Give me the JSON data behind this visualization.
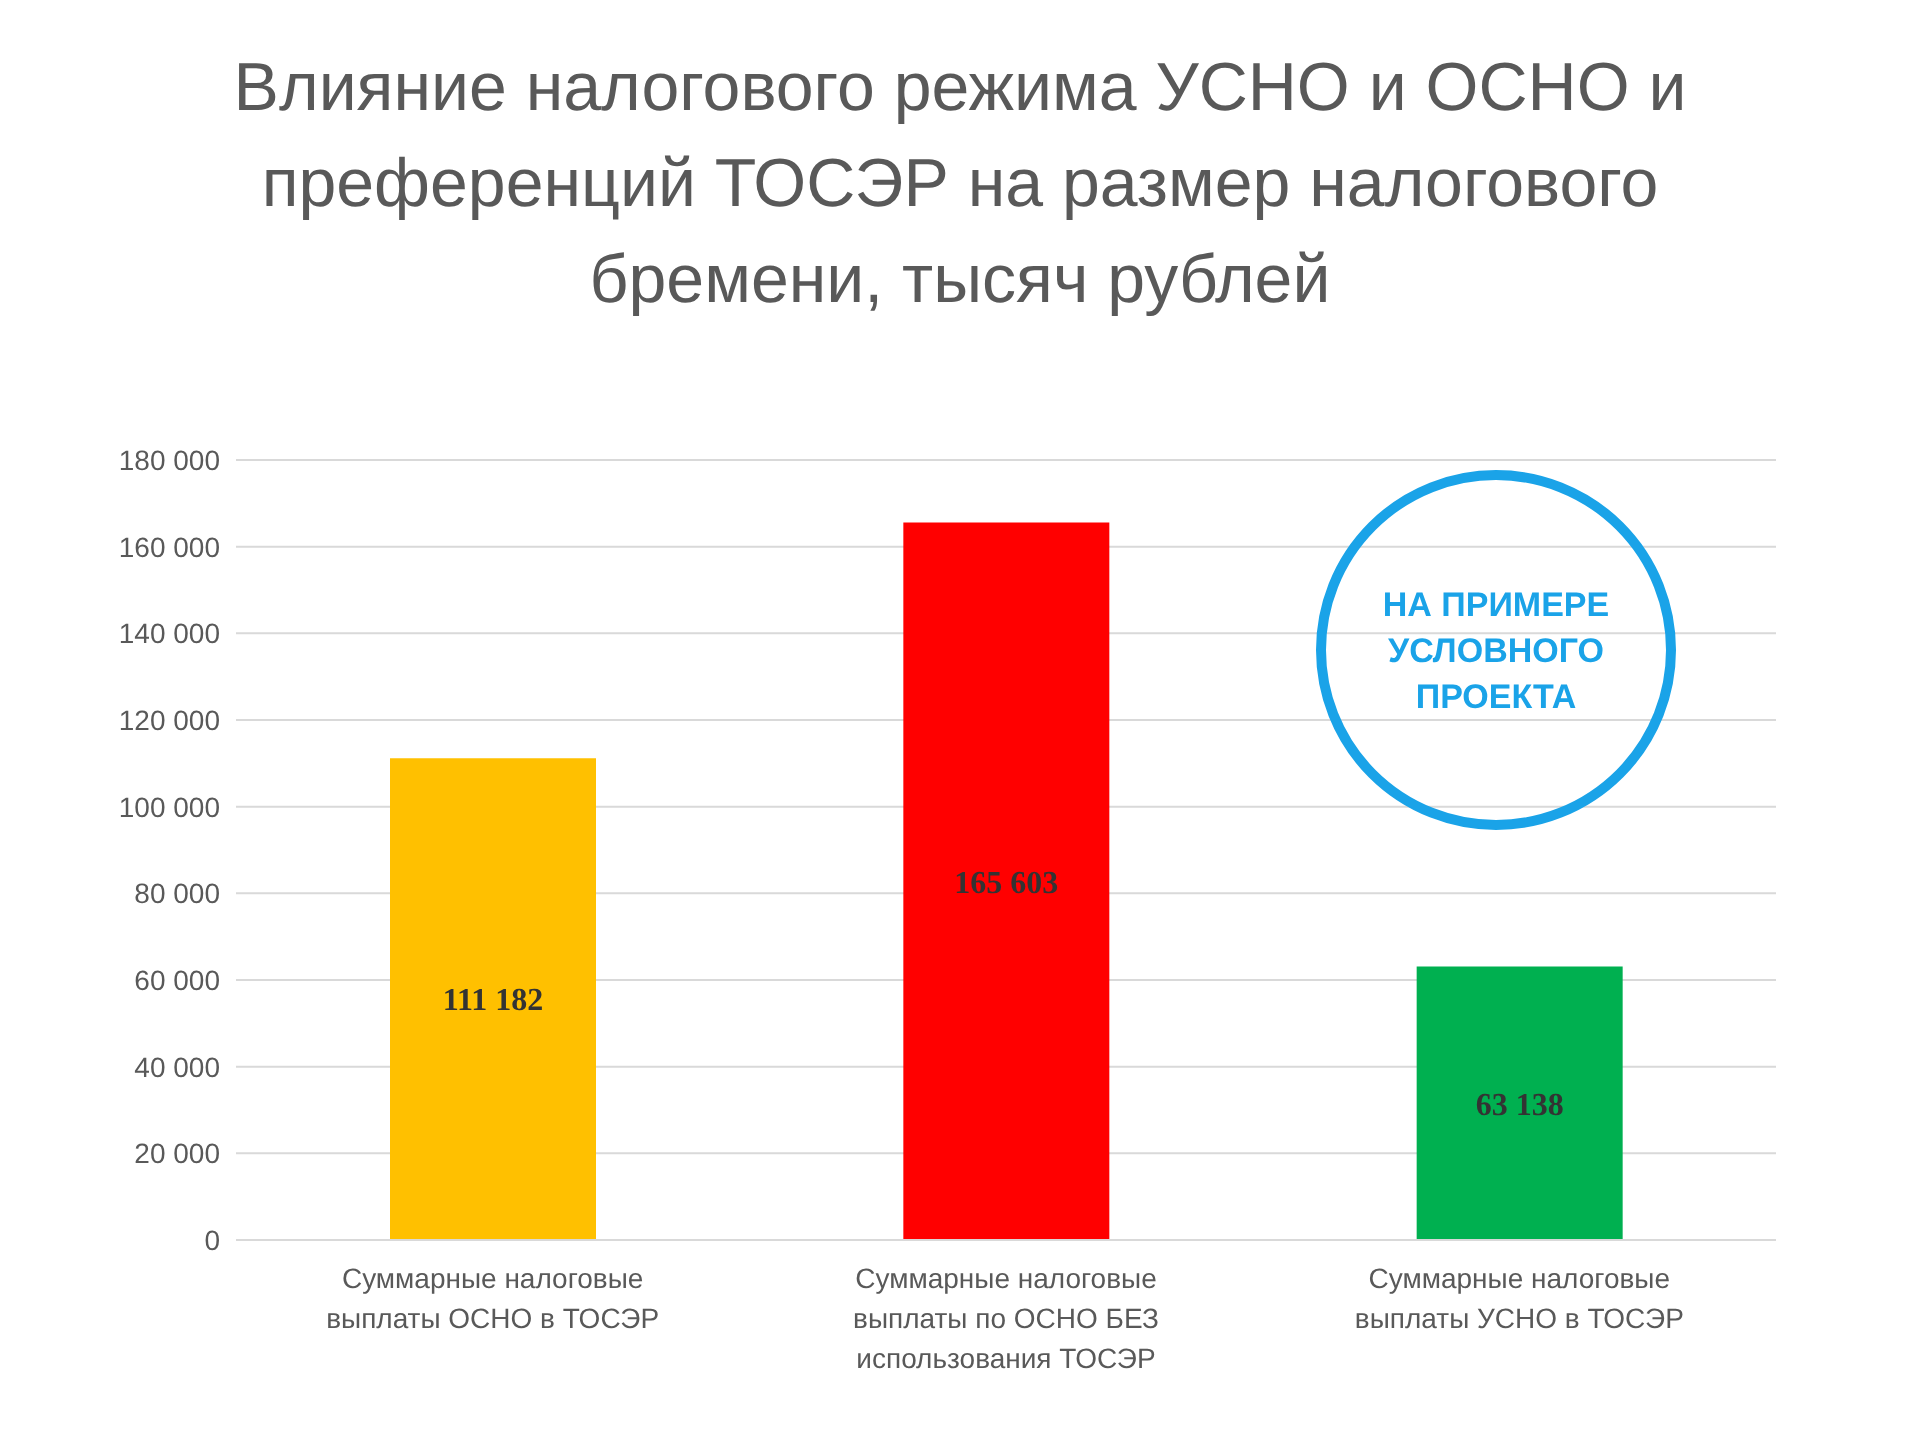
{
  "chart_data": {
    "type": "bar",
    "title": "Влияние налогового режима УСНО и ОСНО и преференций ТОСЭР на размер налогового бремени, тысяч рублей",
    "categories": [
      "Суммарные налоговые выплаты ОСНО в ТОСЭР",
      "Суммарные налоговые выплаты по ОСНО БЕЗ использования ТОСЭР",
      "Суммарные налоговые выплаты УСНО в ТОСЭР"
    ],
    "values": [
      111182,
      165603,
      63138
    ],
    "colors": [
      "#ffc000",
      "#ff0000",
      "#00b050"
    ],
    "value_labels": [
      "111 182",
      "165 603",
      "63 138"
    ],
    "ylim": [
      0,
      180000
    ],
    "yticks": [
      {
        "value": 0,
        "label": "0"
      },
      {
        "value": 20000,
        "label": "20 000"
      },
      {
        "value": 40000,
        "label": "40 000"
      },
      {
        "value": 60000,
        "label": "60 000"
      },
      {
        "value": 80000,
        "label": "80 000"
      },
      {
        "value": 100000,
        "label": "100 000"
      },
      {
        "value": 120000,
        "label": "120 000"
      },
      {
        "value": 140000,
        "label": "140 000"
      },
      {
        "value": 160000,
        "label": "160 000"
      },
      {
        "value": 180000,
        "label": "180 000"
      }
    ],
    "grid": "y",
    "annotations": [
      "НА ПРИМЕРЕ УСЛОВНОГО ПРОЕКТА"
    ]
  }
}
